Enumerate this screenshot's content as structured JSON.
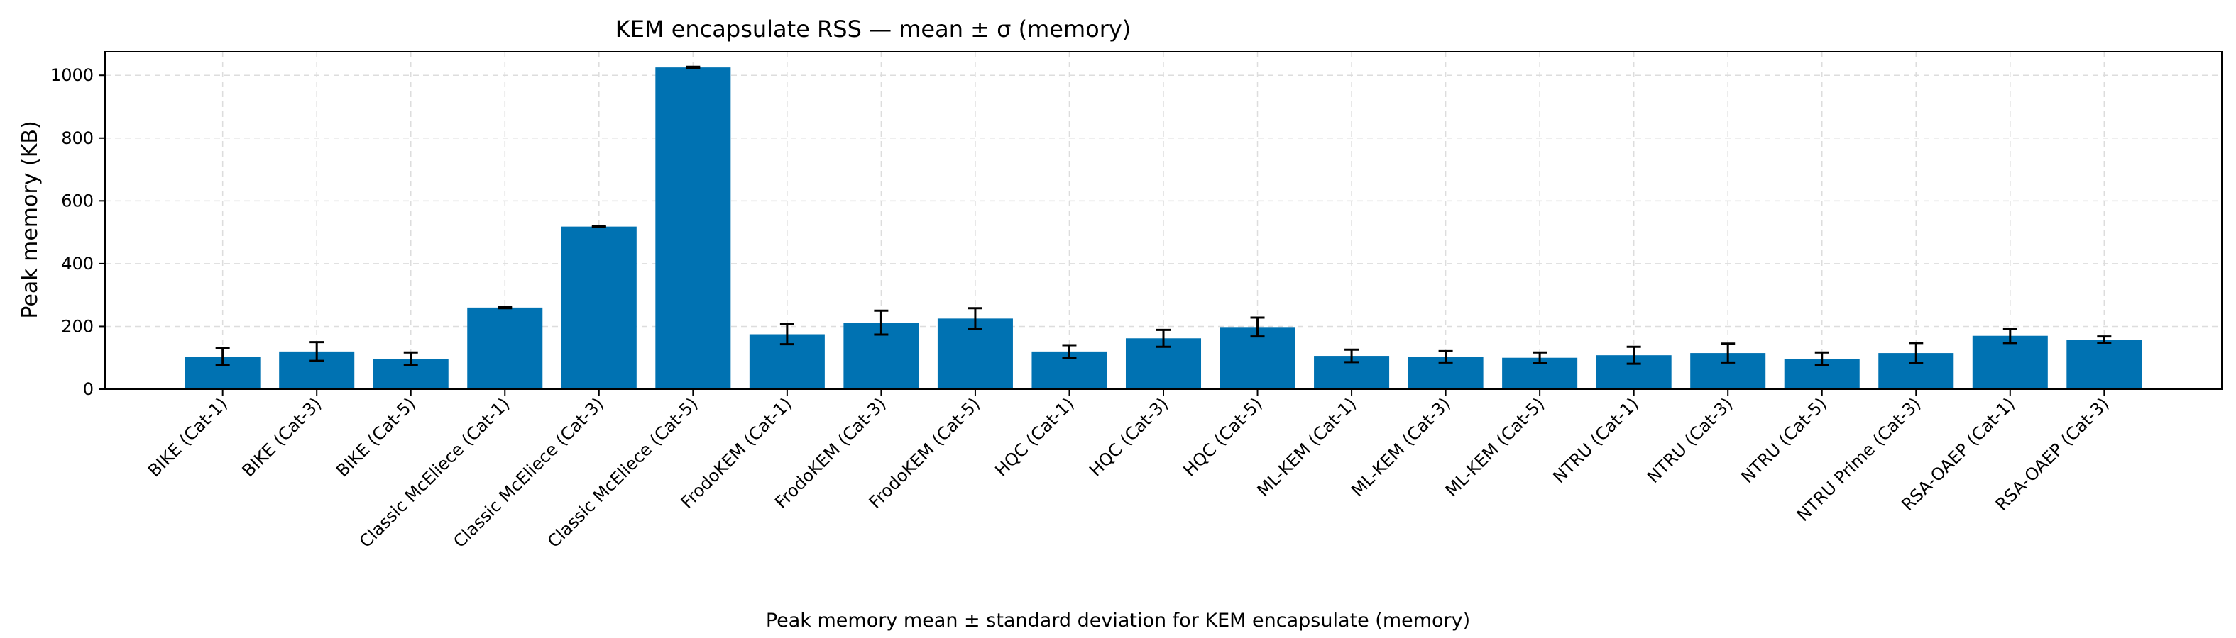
{
  "chart_data": {
    "type": "bar",
    "title": "KEM encapsulate RSS — mean ± σ (memory)",
    "xlabel": "",
    "ylabel": "Peak memory (KB)",
    "caption": "Peak memory mean ± standard deviation for KEM encapsulate (memory)",
    "ylim": [
      0,
      1075
    ],
    "yticks": [
      0,
      200,
      400,
      600,
      800,
      1000
    ],
    "grid": true,
    "bar_color": "#0072b2",
    "categories": [
      "BIKE (Cat-1)",
      "BIKE (Cat-3)",
      "BIKE (Cat-5)",
      "Classic McEliece (Cat-1)",
      "Classic McEliece (Cat-3)",
      "Classic McEliece (Cat-5)",
      "FrodoKEM (Cat-1)",
      "FrodoKEM (Cat-3)",
      "FrodoKEM (Cat-5)",
      "HQC (Cat-1)",
      "HQC (Cat-3)",
      "HQC (Cat-5)",
      "ML-KEM (Cat-1)",
      "ML-KEM (Cat-3)",
      "ML-KEM (Cat-5)",
      "NTRU (Cat-1)",
      "NTRU (Cat-3)",
      "NTRU (Cat-5)",
      "NTRU Prime (Cat-3)",
      "RSA-OAEP (Cat-1)",
      "RSA-OAEP (Cat-3)"
    ],
    "values": [
      103,
      120,
      97,
      260,
      518,
      1025,
      175,
      212,
      225,
      120,
      162,
      198,
      106,
      103,
      100,
      108,
      115,
      97,
      115,
      170,
      158
    ],
    "errors": [
      27,
      30,
      20,
      2,
      2,
      2,
      32,
      38,
      33,
      20,
      27,
      30,
      20,
      18,
      17,
      27,
      30,
      20,
      32,
      23,
      10
    ]
  }
}
